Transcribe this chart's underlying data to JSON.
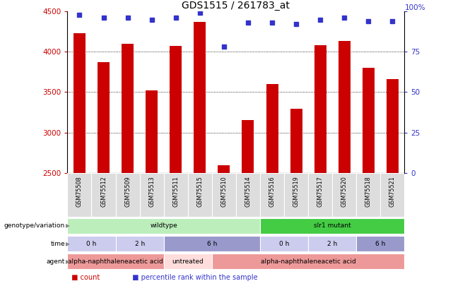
{
  "title": "GDS1515 / 261783_at",
  "samples": [
    "GSM75508",
    "GSM75512",
    "GSM75509",
    "GSM75513",
    "GSM75511",
    "GSM75515",
    "GSM75510",
    "GSM75514",
    "GSM75516",
    "GSM75519",
    "GSM75517",
    "GSM75520",
    "GSM75518",
    "GSM75521"
  ],
  "counts": [
    4230,
    3870,
    4100,
    3520,
    4070,
    4370,
    2590,
    3150,
    3600,
    3290,
    4080,
    4130,
    3800,
    3660
  ],
  "percentile": [
    98,
    96,
    96,
    95,
    96,
    99,
    78,
    93,
    93,
    92,
    95,
    96,
    94,
    94
  ],
  "ylim_left": [
    2500,
    4500
  ],
  "ylim_right": [
    0,
    100
  ],
  "yticks_left": [
    2500,
    3000,
    3500,
    4000,
    4500
  ],
  "yticks_right": [
    0,
    25,
    50,
    75,
    100
  ],
  "bar_color": "#cc0000",
  "dot_color": "#3333cc",
  "bar_width": 0.5,
  "genotype_groups": [
    {
      "label": "wildtype",
      "start": 0,
      "end": 8,
      "color": "#bbeebb"
    },
    {
      "label": "slr1 mutant",
      "start": 8,
      "end": 14,
      "color": "#44cc44"
    }
  ],
  "time_groups": [
    {
      "label": "0 h",
      "start": 0,
      "end": 2,
      "color": "#ccccee"
    },
    {
      "label": "2 h",
      "start": 2,
      "end": 4,
      "color": "#ccccee"
    },
    {
      "label": "6 h",
      "start": 4,
      "end": 8,
      "color": "#9999cc"
    },
    {
      "label": "0 h",
      "start": 8,
      "end": 10,
      "color": "#ccccee"
    },
    {
      "label": "2 h",
      "start": 10,
      "end": 12,
      "color": "#ccccee"
    },
    {
      "label": "6 h",
      "start": 12,
      "end": 14,
      "color": "#9999cc"
    }
  ],
  "agent_groups": [
    {
      "label": "alpha-naphthaleneacetic acid",
      "start": 0,
      "end": 4,
      "color": "#ee9999"
    },
    {
      "label": "untreated",
      "start": 4,
      "end": 6,
      "color": "#ffdddd"
    },
    {
      "label": "alpha-naphthaleneacetic acid",
      "start": 6,
      "end": 14,
      "color": "#ee9999"
    }
  ],
  "row_labels": [
    "genotype/variation",
    "time",
    "agent"
  ],
  "bg_color": "#ffffff",
  "tick_color_left": "#cc0000",
  "tick_color_right": "#3333cc",
  "sample_bg": "#dddddd"
}
